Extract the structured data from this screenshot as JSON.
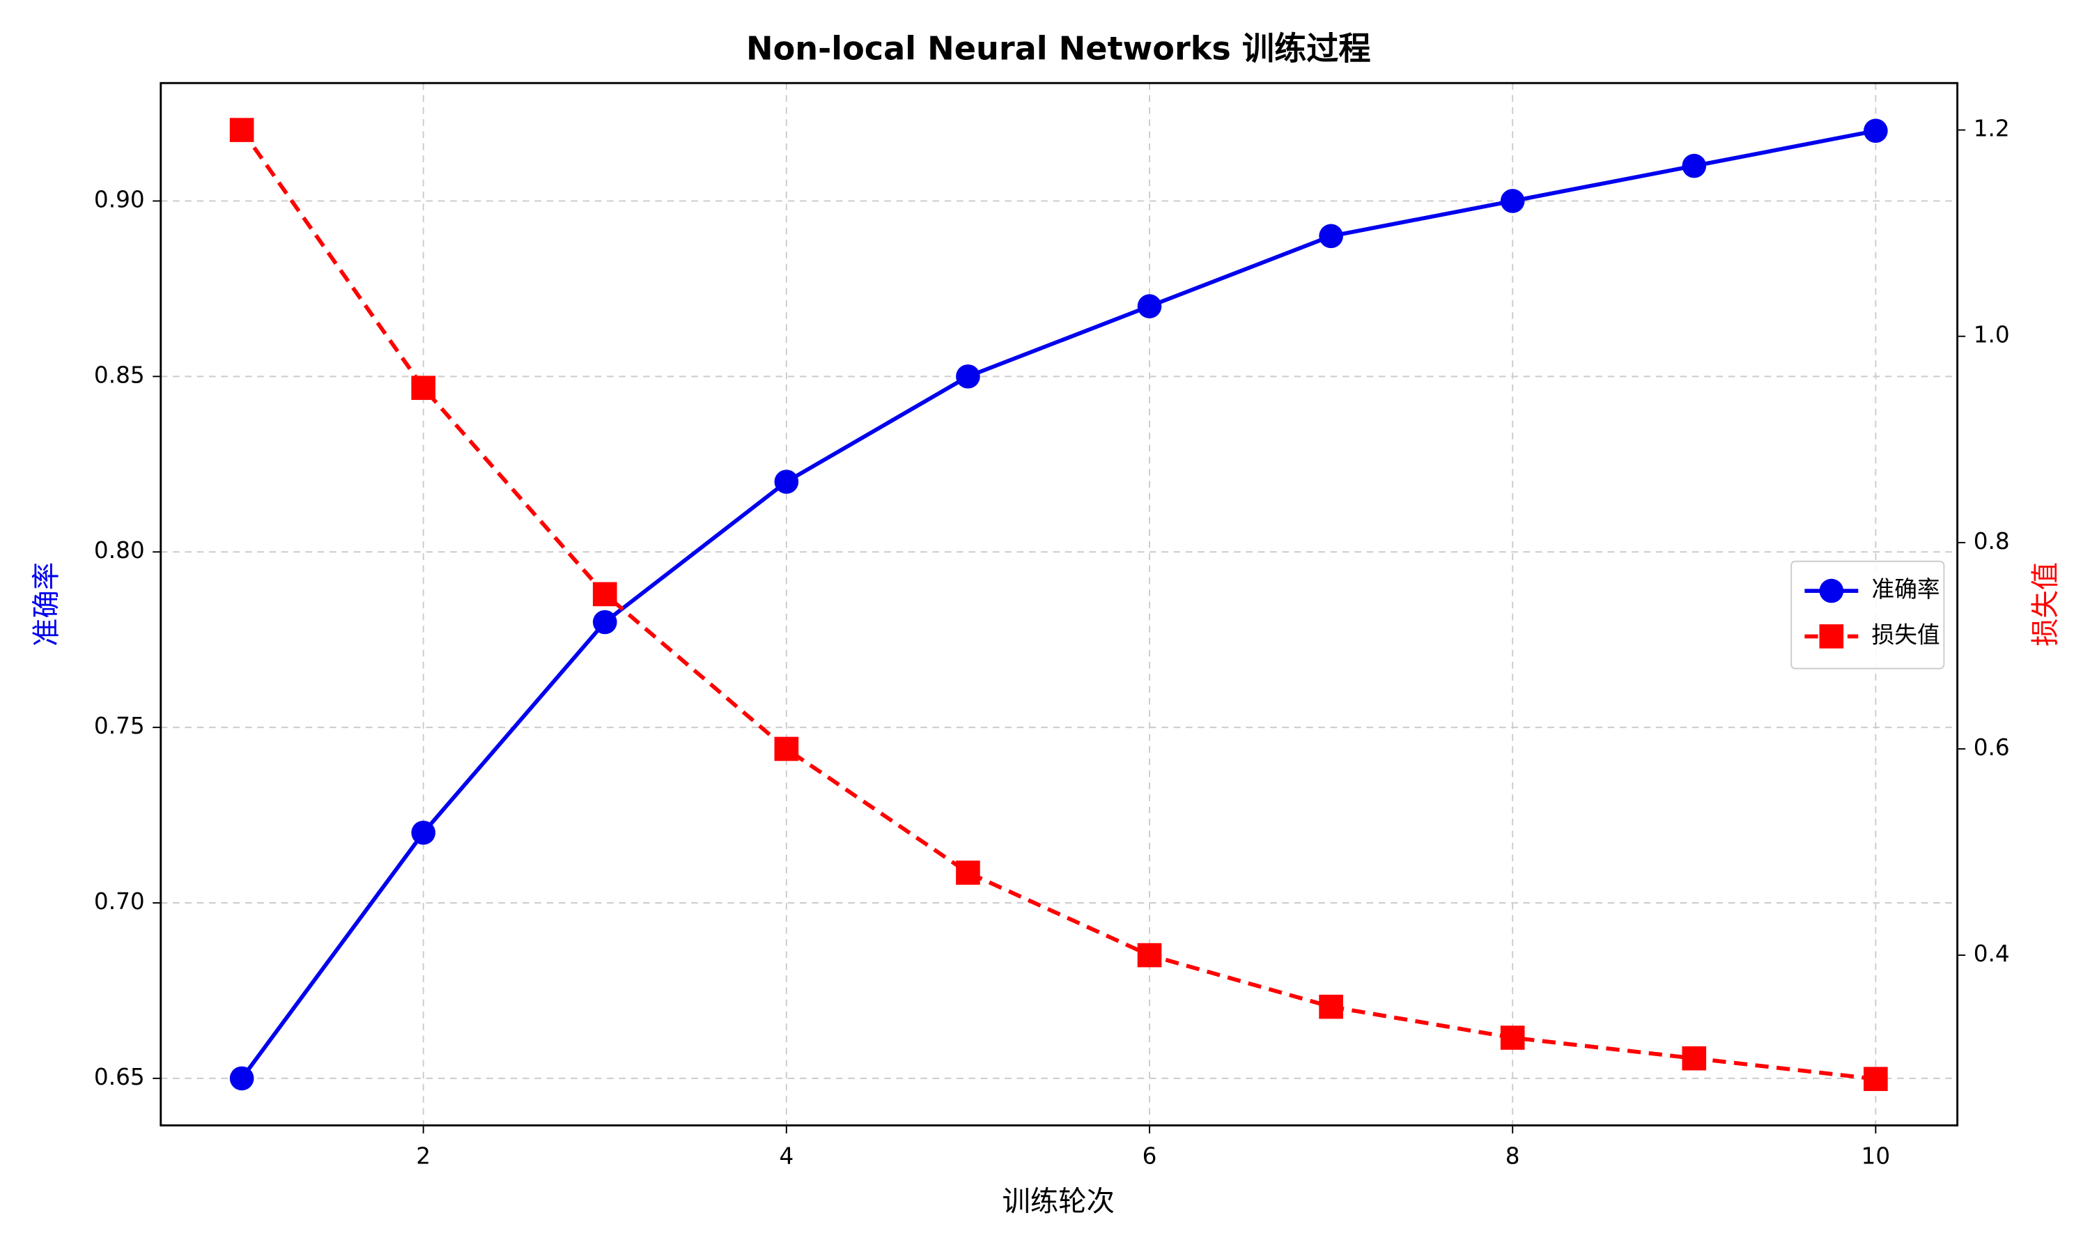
{
  "chart_data": {
    "type": "line",
    "title": "Non-local Neural Networks 训练过程",
    "x_label": "训练轮次",
    "y_label": "准确率",
    "y2_label": "损失值",
    "x": [
      1,
      2,
      3,
      4,
      5,
      6,
      7,
      8,
      9,
      10
    ],
    "series": [
      {
        "name": "准确率",
        "color": "#0000ee",
        "marker": "circle",
        "linestyle": "solid",
        "values": [
          0.65,
          0.72,
          0.78,
          0.82,
          0.85,
          0.87,
          0.89,
          0.9,
          0.91,
          0.92
        ]
      },
      {
        "name": "损失值",
        "color": "#ff0000",
        "marker": "square",
        "linestyle": "dashed",
        "axis": "y2",
        "values": [
          1.2,
          0.95,
          0.75,
          0.6,
          0.48,
          0.4,
          0.35,
          0.32,
          0.3,
          0.28
        ]
      }
    ],
    "xlim": [
      0.5535,
      10.45
    ],
    "xticks": [
      2,
      4,
      6,
      8,
      10
    ],
    "ylim": [
      0.6366,
      0.9336
    ],
    "yticks": [
      0.65,
      {
        "value": 0.7,
        "label": "0.70"
      },
      0.75,
      {
        "value": 0.8,
        "label": "0.80"
      },
      0.85,
      {
        "value": 0.9,
        "label": "0.90"
      }
    ],
    "y2lim": [
      0.235,
      1.2455
    ],
    "y2ticks": [
      0.4,
      0.6,
      0.8,
      {
        "value": 1.0,
        "label": "1.0"
      },
      1.2
    ],
    "grid": true,
    "legend": "center right"
  }
}
